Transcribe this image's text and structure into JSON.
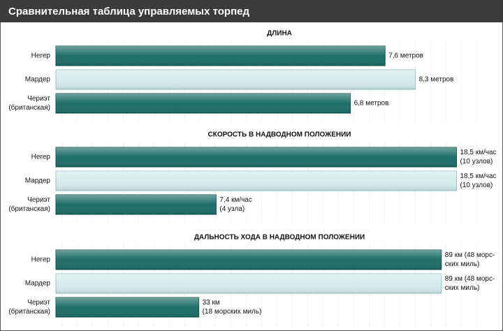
{
  "title": "Сравнительная таблица управляемых торпед",
  "chart_data": [
    {
      "type": "bar",
      "orientation": "horizontal",
      "title": "ДЛИНА",
      "categories": [
        [
          "Негер"
        ],
        [
          "Мардер"
        ],
        [
          "Чериэт",
          "(британская)"
        ]
      ],
      "values": [
        7.6,
        8.3,
        6.8
      ],
      "value_labels": [
        [
          "7,6 метров"
        ],
        [
          "8,3 метров"
        ],
        [
          "6,8 метров"
        ]
      ],
      "colors": [
        "#1f6f69",
        "#d4ecea",
        "#1f6f69"
      ],
      "xlim": [
        0,
        10
      ]
    },
    {
      "type": "bar",
      "orientation": "horizontal",
      "title": "СКОРОСТЬ В НАДВОДНОМ ПОЛОЖЕНИИ",
      "categories": [
        [
          "Негер"
        ],
        [
          "Мардер"
        ],
        [
          "Чериэт",
          "(британская)"
        ]
      ],
      "values": [
        18.5,
        18.5,
        7.4
      ],
      "value_labels": [
        [
          "18,5 км/час",
          "(10 узлов)"
        ],
        [
          "18,5 км/час",
          "(10 узлов)"
        ],
        [
          "7,4 км/час",
          "(4 узла)"
        ]
      ],
      "colors": [
        "#1f6f69",
        "#d4ecea",
        "#1f6f69"
      ],
      "xlim": [
        0,
        20
      ]
    },
    {
      "type": "bar",
      "orientation": "horizontal",
      "title": "ДАЛЬНОСТЬ ХОДА В НАДВОДНОМ ПОЛОЖЕНИИ",
      "categories": [
        [
          "Негер"
        ],
        [
          "Мардер"
        ],
        [
          "Чериэт",
          "(британская)"
        ]
      ],
      "values": [
        89,
        89,
        33
      ],
      "value_labels": [
        [
          "89 км (48 морс-",
          "ских миль)"
        ],
        [
          "89 км (48 морс-",
          "ских миль)"
        ],
        [
          "33 км",
          "(18 морских миль)"
        ]
      ],
      "colors": [
        "#1f6f69",
        "#d4ecea",
        "#1f6f69"
      ],
      "xlim": [
        0,
        100
      ]
    }
  ]
}
